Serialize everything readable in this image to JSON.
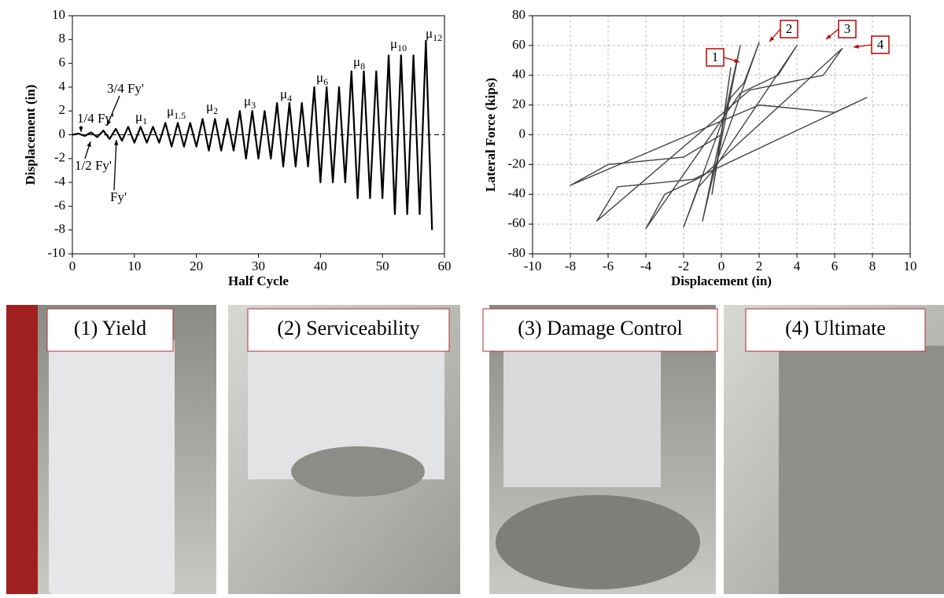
{
  "chart_data": [
    {
      "type": "line",
      "x_label": "Half Cycle",
      "y_label": "Displacement (in)",
      "x": [
        0,
        1,
        2,
        3,
        4,
        5,
        6,
        7,
        8,
        9,
        10,
        11,
        12,
        13,
        14,
        15,
        16,
        17,
        18,
        19,
        20,
        21,
        22,
        23,
        24,
        25,
        26,
        27,
        28,
        29,
        30,
        31,
        32,
        33,
        34,
        35,
        36,
        37,
        38,
        39,
        40,
        41,
        42,
        43,
        44,
        45,
        46,
        47,
        48,
        49,
        50,
        51,
        52,
        53,
        54,
        55,
        56,
        57,
        58
      ],
      "values": [
        0,
        0.1,
        -0.1,
        0.2,
        -0.2,
        0.35,
        -0.35,
        0.5,
        -0.5,
        0.67,
        -0.67,
        0.67,
        -0.67,
        0.67,
        -0.67,
        1,
        -1,
        1,
        -1,
        1,
        -1,
        1.33,
        -1.33,
        1.33,
        -1.33,
        1.33,
        -1.33,
        2,
        -2,
        2,
        -2,
        2,
        -2,
        2.67,
        -2.67,
        2.67,
        -2.67,
        2.67,
        -2.67,
        4,
        -4,
        4,
        -4,
        4,
        -4,
        5.33,
        -5.33,
        5.33,
        -5.33,
        5.33,
        -5.33,
        6.67,
        -6.67,
        6.67,
        -6.67,
        6.67,
        -6.67,
        7.9,
        -8
      ],
      "color": "#000000",
      "xlim": [
        0,
        60
      ],
      "xticks": [
        0,
        10,
        20,
        30,
        40,
        50,
        60
      ],
      "ylim": [
        -10,
        10
      ],
      "yticks": [
        -10,
        -8,
        -6,
        -4,
        -2,
        0,
        2,
        4,
        6,
        8,
        10
      ],
      "grid": false,
      "zero_line": true,
      "annotations": [
        {
          "text": "μ",
          "sub": "1"
        },
        {
          "text": "μ",
          "sub": "1.5"
        },
        {
          "text": "μ",
          "sub": "2"
        },
        {
          "text": "μ",
          "sub": "3"
        },
        {
          "text": "μ",
          "sub": "4"
        },
        {
          "text": "μ",
          "sub": "6"
        },
        {
          "text": "μ",
          "sub": "8"
        },
        {
          "text": "μ",
          "sub": "10"
        },
        {
          "text": "μ",
          "sub": "12"
        },
        {
          "text": "1/4 Fy'"
        },
        {
          "text": "3/4 Fy'"
        },
        {
          "text": "1/2 Fy'"
        },
        {
          "text": "Fy'"
        }
      ]
    },
    {
      "type": "line",
      "x_label": "Displacement (in)",
      "y_label": "Lateral Force (kips)",
      "x": [
        0,
        0.5,
        0.1,
        -0.5,
        -0.1,
        1,
        0.3,
        -1,
        -0.3,
        2,
        1.2,
        0.5,
        -2,
        -1.2,
        -0.5,
        4,
        3,
        1,
        -4,
        -3,
        -1,
        6.4,
        5.4,
        1.5,
        -6.6,
        -5.5,
        -1.5,
        7.7,
        6,
        2,
        -8,
        -6,
        -2,
        0
      ],
      "values": [
        0,
        45,
        10,
        -40,
        -10,
        60,
        20,
        -58,
        -20,
        62,
        35,
        25,
        -62,
        -35,
        -25,
        60,
        40,
        28,
        -63,
        -40,
        -28,
        58,
        40,
        30,
        -58,
        -35,
        -30,
        25,
        15,
        20,
        -34,
        -20,
        -15,
        0
      ],
      "color": "#444444",
      "xlim": [
        -10,
        10
      ],
      "xticks": [
        -10,
        -8,
        -6,
        -4,
        -2,
        0,
        2,
        4,
        6,
        8,
        10
      ],
      "ylim": [
        -80,
        80
      ],
      "yticks": [
        -80,
        -60,
        -40,
        -20,
        0,
        20,
        40,
        60,
        80
      ],
      "grid": true,
      "zero_line": false,
      "annotations": [
        {
          "text": "1"
        },
        {
          "text": "2"
        },
        {
          "text": "3"
        },
        {
          "text": "4"
        }
      ]
    }
  ],
  "photos": [
    {
      "caption": "(1) Yield"
    },
    {
      "caption": "(2) Serviceability"
    },
    {
      "caption": "(3) Damage Control"
    },
    {
      "caption": "(4) Ultimate"
    }
  ]
}
